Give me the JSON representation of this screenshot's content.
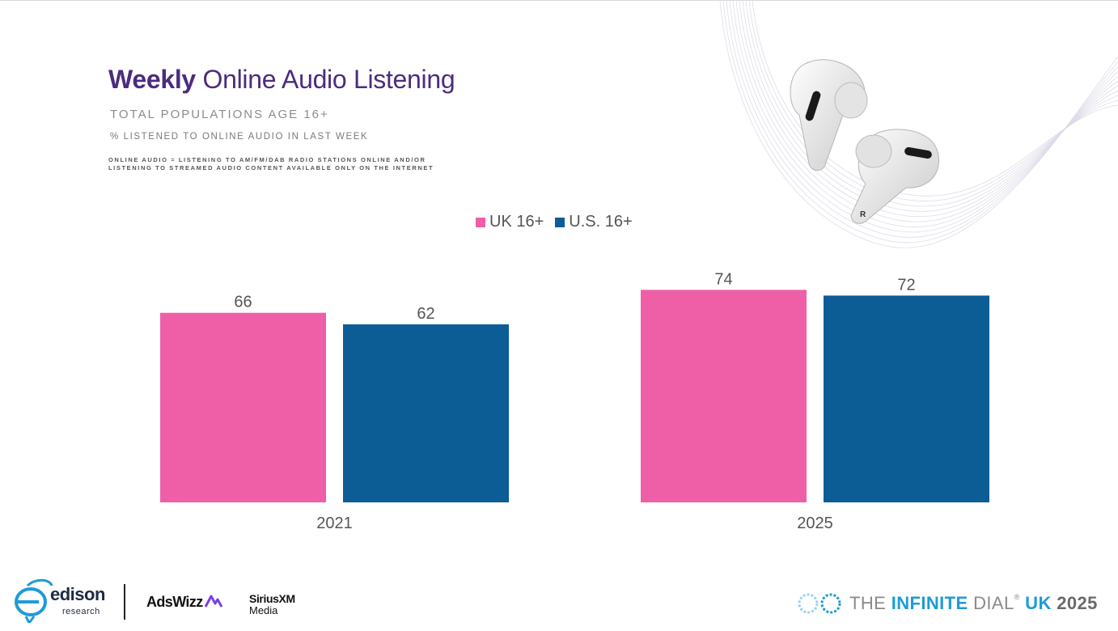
{
  "title": {
    "bold": "Weekly",
    "rest": " Online Audio Listening"
  },
  "subtitle": "TOTAL POPULATIONS AGE 16+",
  "metric": "% LISTENED TO ONLINE AUDIO IN LAST WEEK",
  "note": {
    "line1": "ONLINE AUDIO = LISTENING TO AM/FM/DAB RADIO STATIONS ONLINE AND/OR",
    "line2": "LISTENING TO STREAMED AUDIO CONTENT AVAILABLE ONLY ON THE INTERNET"
  },
  "colors": {
    "uk": "#ef5fa7",
    "us": "#0c5c96",
    "title": "#4b2c7f",
    "brand": "#1e9bd7"
  },
  "chart_data": {
    "type": "bar",
    "categories": [
      "2021",
      "2025"
    ],
    "series": [
      {
        "name": "UK 16+",
        "values": [
          66,
          74
        ]
      },
      {
        "name": "U.S. 16+",
        "values": [
          62,
          72
        ]
      }
    ],
    "ylim": [
      0,
      100
    ],
    "grid": false,
    "legend": "top-center",
    "data_labels": true
  },
  "footer": {
    "edison": "edison",
    "edison_sub": "research",
    "adswizz": "AdsWizz",
    "sirius_line1": "SiriusXM",
    "sirius_line2": "Media",
    "dial_prefix": "THE ",
    "dial_highlight": "INFINITE",
    "dial_mid": " DIAL",
    "dial_sup": "®",
    "dial_uk": " UK",
    "dial_year": " 2025"
  },
  "icons": {
    "earbuds": "earbuds-image",
    "edison_logo": "edison-logo-icon",
    "infinite_logo": "infinity-dial-icon"
  }
}
